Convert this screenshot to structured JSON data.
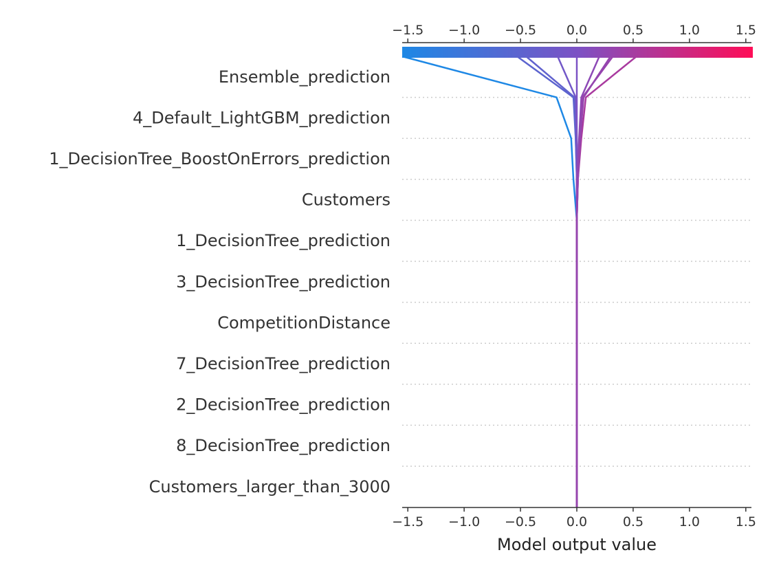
{
  "chart_data": {
    "type": "line",
    "subtype": "shap-decision-plot",
    "title": "",
    "xlabel": "Model output value",
    "ylabel": "",
    "xlim": [
      -1.55,
      1.55
    ],
    "x_ticks": [
      "−1.5",
      "−1.0",
      "−0.5",
      "0.0",
      "0.5",
      "1.0",
      "1.5"
    ],
    "x_tick_values": [
      -1.5,
      -1.0,
      -0.5,
      0.0,
      0.5,
      1.0,
      1.5
    ],
    "base_value": 0.0,
    "features": [
      "Ensemble_prediction",
      "4_Default_LightGBM_prediction",
      "1_DecisionTree_BoostOnErrors_prediction",
      "Customers",
      "1_DecisionTree_prediction",
      "3_DecisionTree_prediction",
      "CompetitionDistance",
      "7_DecisionTree_prediction",
      "2_DecisionTree_prediction",
      "8_DecisionTree_prediction",
      "Customers_larger_than_3000"
    ],
    "grid": "dotted horizontal lines between features",
    "colorbar": {
      "colors": [
        "#1e88e5",
        "#7c52c4",
        "#ff0d57"
      ],
      "range": [
        -1.55,
        1.55
      ]
    },
    "series": [
      {
        "values": [
          -1.55,
          -0.18,
          -0.05,
          -0.03,
          0.0,
          0.0,
          0.0,
          0.0,
          0.0,
          0.0,
          0.0,
          0.0
        ]
      },
      {
        "values": [
          -0.53,
          -0.03,
          -0.01,
          0.0,
          0.0,
          0.0,
          0.0,
          0.0,
          0.0,
          0.0,
          0.0,
          0.0
        ]
      },
      {
        "values": [
          -0.45,
          -0.02,
          -0.01,
          0.0,
          0.0,
          0.0,
          0.0,
          0.0,
          0.0,
          0.0,
          0.0,
          0.0
        ]
      },
      {
        "values": [
          -0.17,
          -0.01,
          0.0,
          0.0,
          0.0,
          0.0,
          0.0,
          0.0,
          0.0,
          0.0,
          0.0,
          0.0
        ]
      },
      {
        "values": [
          0.0,
          0.0,
          0.0,
          0.0,
          0.0,
          0.0,
          0.0,
          0.0,
          0.0,
          0.0,
          0.0,
          0.0
        ]
      },
      {
        "values": [
          0.2,
          0.04,
          0.02,
          0.0,
          0.0,
          0.0,
          0.0,
          0.0,
          0.0,
          0.0,
          0.0,
          0.0
        ]
      },
      {
        "values": [
          0.32,
          0.05,
          0.03,
          0.01,
          0.0,
          0.0,
          0.0,
          0.0,
          0.0,
          0.0,
          0.0,
          0.0
        ]
      },
      {
        "values": [
          0.53,
          0.08,
          0.04,
          0.01,
          0.0,
          0.0,
          0.0,
          0.0,
          0.0,
          0.0,
          0.0,
          0.0
        ]
      },
      {
        "values": [
          0.3,
          0.06,
          0.03,
          0.01,
          0.0,
          0.0,
          0.0,
          0.0,
          0.0,
          0.0,
          0.0,
          0.0
        ]
      }
    ]
  }
}
